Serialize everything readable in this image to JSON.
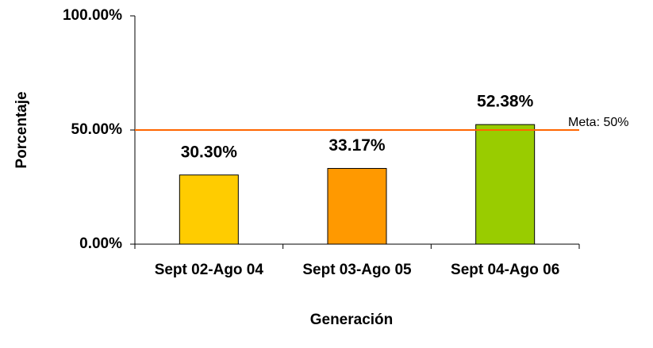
{
  "chart_data": {
    "type": "bar",
    "x_label": "Generación",
    "y_label": "Porcentaje",
    "categories": [
      "Sept 02-Ago 04",
      "Sept 03-Ago 05",
      "Sept 04-Ago 06"
    ],
    "values": [
      30.3,
      33.17,
      52.38
    ],
    "value_labels": [
      "30.30%",
      "33.17%",
      "52.38%"
    ],
    "colors": [
      "#ffcc00",
      "#ff9900",
      "#99cc00"
    ],
    "ylim": [
      0,
      100
    ],
    "yticks": [
      {
        "value": 0,
        "label": "0.00%"
      },
      {
        "value": 50,
        "label": "50.00%"
      },
      {
        "value": 100,
        "label": "100.00%"
      }
    ],
    "reference_line": {
      "value": 50,
      "label": "Meta: 50%",
      "color": "#ff6600"
    }
  }
}
